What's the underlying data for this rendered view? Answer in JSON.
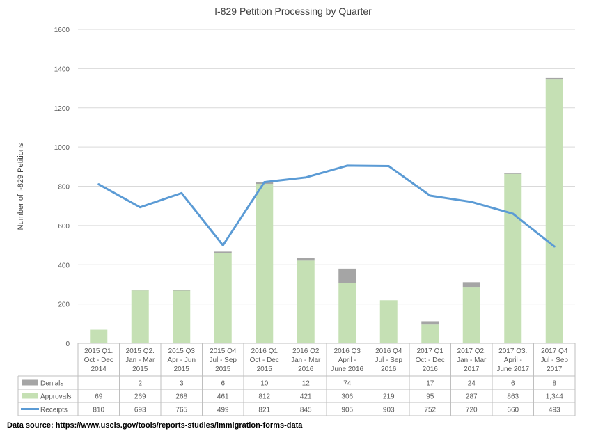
{
  "chart_data": {
    "type": "bar",
    "title": "I-829 Petition Processing by Quarter",
    "ylabel": "Number  of I-829 Petitions",
    "ylim": [
      0,
      1600
    ],
    "yticks": [
      0,
      200,
      400,
      600,
      800,
      1000,
      1200,
      1400,
      1600
    ],
    "categories": [
      [
        "2015 Q1.",
        "Oct - Dec",
        "2014"
      ],
      [
        "2015 Q2.",
        "Jan - Mar",
        "2015"
      ],
      [
        "2015 Q3",
        "Apr - Jun",
        "2015"
      ],
      [
        "2015 Q4",
        "Jul - Sep",
        "2015"
      ],
      [
        "2016 Q1",
        "Oct - Dec",
        "2015"
      ],
      [
        "2016 Q2",
        "Jan - Mar",
        "2016"
      ],
      [
        "2016 Q3",
        "April -",
        "June 2016"
      ],
      [
        "2016 Q4",
        "Jul - Sep",
        "2016"
      ],
      [
        "2017 Q1",
        "Oct - Dec",
        "2016"
      ],
      [
        "2017 Q2.",
        "Jan - Mar",
        "2017"
      ],
      [
        "2017 Q3.",
        "April -",
        "June 2017"
      ],
      [
        "2017 Q4",
        "Jul - Sep",
        "2017"
      ]
    ],
    "series": [
      {
        "name": "Denials",
        "kind": "stacked-bar",
        "color": "#a5a5a5",
        "values": [
          null,
          2,
          3,
          6,
          10,
          12,
          74,
          null,
          17,
          24,
          6,
          8
        ],
        "labels": [
          "",
          "2",
          "3",
          "6",
          "10",
          "12",
          "74",
          "",
          "17",
          "24",
          "6",
          "8"
        ]
      },
      {
        "name": "Approvals",
        "kind": "stacked-bar",
        "color": "#c5e0b4",
        "values": [
          69,
          269,
          268,
          461,
          812,
          421,
          306,
          219,
          95,
          287,
          863,
          1344
        ],
        "labels": [
          "69",
          "269",
          "268",
          "461",
          "812",
          "421",
          "306",
          "219",
          "95",
          "287",
          "863",
          "1,344"
        ]
      },
      {
        "name": "Receipts",
        "kind": "line",
        "color": "#5b9bd5",
        "values": [
          810,
          693,
          765,
          499,
          821,
          845,
          905,
          903,
          752,
          720,
          660,
          493
        ],
        "labels": [
          "810",
          "693",
          "765",
          "499",
          "821",
          "845",
          "905",
          "903",
          "752",
          "720",
          "660",
          "493"
        ]
      }
    ],
    "colors": {
      "grid": "#d9d9d9",
      "axis": "#bfbfbf"
    }
  },
  "source_note": "Data source: https://www.uscis.gov/tools/reports-studies/immigration-forms-data"
}
